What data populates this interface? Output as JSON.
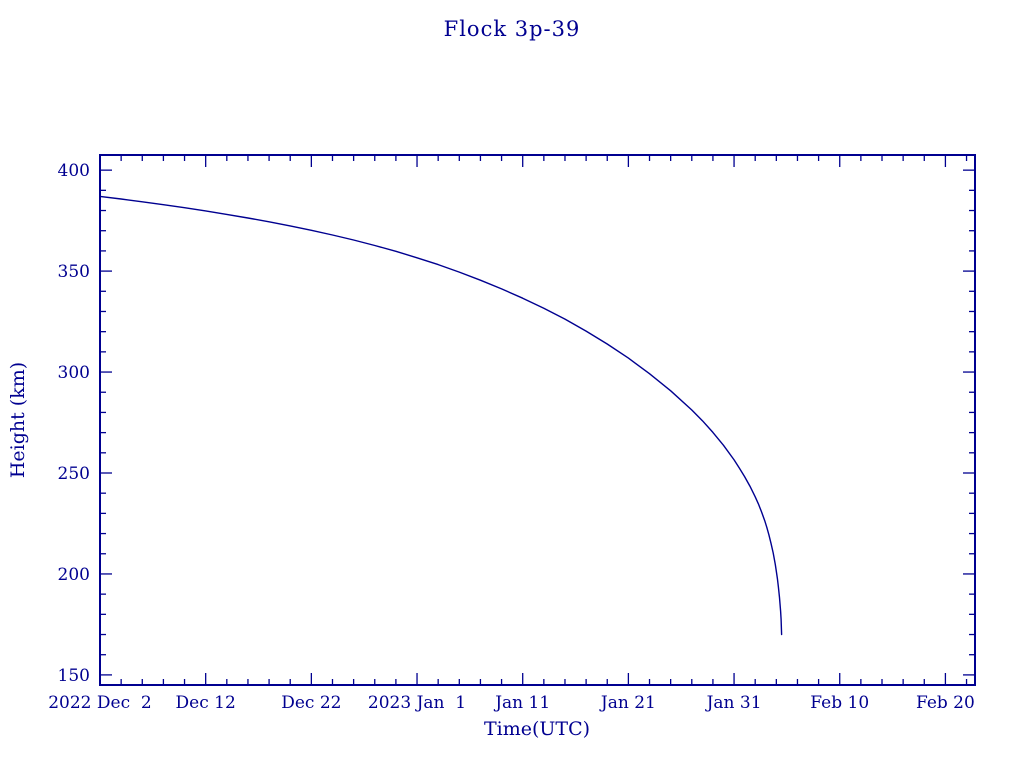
{
  "colors": {
    "accent": "#000090",
    "background": "#ffffff"
  },
  "chart_data": {
    "type": "line",
    "title": "Flock 3p-39",
    "xlabel": "Time(UTC)",
    "ylabel": "Height (km)",
    "x_description": "days after 2022 Dec 2",
    "xlim": [
      0,
      82.8
    ],
    "ylim": [
      145,
      407.5
    ],
    "grid": false,
    "legend": "none",
    "x_ticks": [
      {
        "value": 0,
        "label": "2022 Dec  2"
      },
      {
        "value": 10,
        "label": "Dec 12"
      },
      {
        "value": 20,
        "label": "Dec 22"
      },
      {
        "value": 30,
        "label": "2023 Jan  1"
      },
      {
        "value": 40,
        "label": "Jan 11"
      },
      {
        "value": 50,
        "label": "Jan 21"
      },
      {
        "value": 60,
        "label": "Jan 31"
      },
      {
        "value": 70,
        "label": "Feb 10"
      },
      {
        "value": 80,
        "label": "Feb 20"
      }
    ],
    "x_minor_step": 2,
    "y_ticks": [
      150,
      200,
      250,
      300,
      350,
      400
    ],
    "y_minor_step": 10,
    "series": [
      {
        "name": "orbital height",
        "points": [
          [
            0,
            387
          ],
          [
            2,
            385.7
          ],
          [
            4,
            384.3
          ],
          [
            6,
            382.9
          ],
          [
            8,
            381.4
          ],
          [
            10,
            379.8
          ],
          [
            12,
            378.1
          ],
          [
            14,
            376.3
          ],
          [
            16,
            374.4
          ],
          [
            18,
            372.4
          ],
          [
            20,
            370.2
          ],
          [
            22,
            367.9
          ],
          [
            24,
            365.4
          ],
          [
            26,
            362.7
          ],
          [
            28,
            359.8
          ],
          [
            30,
            356.6
          ],
          [
            32,
            353.2
          ],
          [
            34,
            349.5
          ],
          [
            36,
            345.5
          ],
          [
            38,
            341.2
          ],
          [
            40,
            336.6
          ],
          [
            42,
            331.6
          ],
          [
            44,
            326.2
          ],
          [
            46,
            320.3
          ],
          [
            48,
            313.9
          ],
          [
            50,
            306.9
          ],
          [
            52,
            299.2
          ],
          [
            54,
            290.7
          ],
          [
            56,
            281.2
          ],
          [
            57,
            275.9
          ],
          [
            58,
            270.1
          ],
          [
            59,
            263.7
          ],
          [
            60,
            256.5
          ],
          [
            60.5,
            252.5
          ],
          [
            61,
            248.2
          ],
          [
            61.5,
            243.5
          ],
          [
            62,
            238.2
          ],
          [
            62.3,
            234.7
          ],
          [
            62.6,
            230.8
          ],
          [
            62.9,
            226.4
          ],
          [
            63.1,
            223.1
          ],
          [
            63.3,
            219.4
          ],
          [
            63.5,
            215.2
          ],
          [
            63.7,
            210.4
          ],
          [
            63.9,
            204.7
          ],
          [
            64.0,
            201.4
          ],
          [
            64.1,
            197.7
          ],
          [
            64.2,
            193.5
          ],
          [
            64.3,
            188.3
          ],
          [
            64.4,
            181.6
          ],
          [
            64.45,
            177.5
          ],
          [
            64.5,
            170
          ]
        ]
      }
    ]
  }
}
